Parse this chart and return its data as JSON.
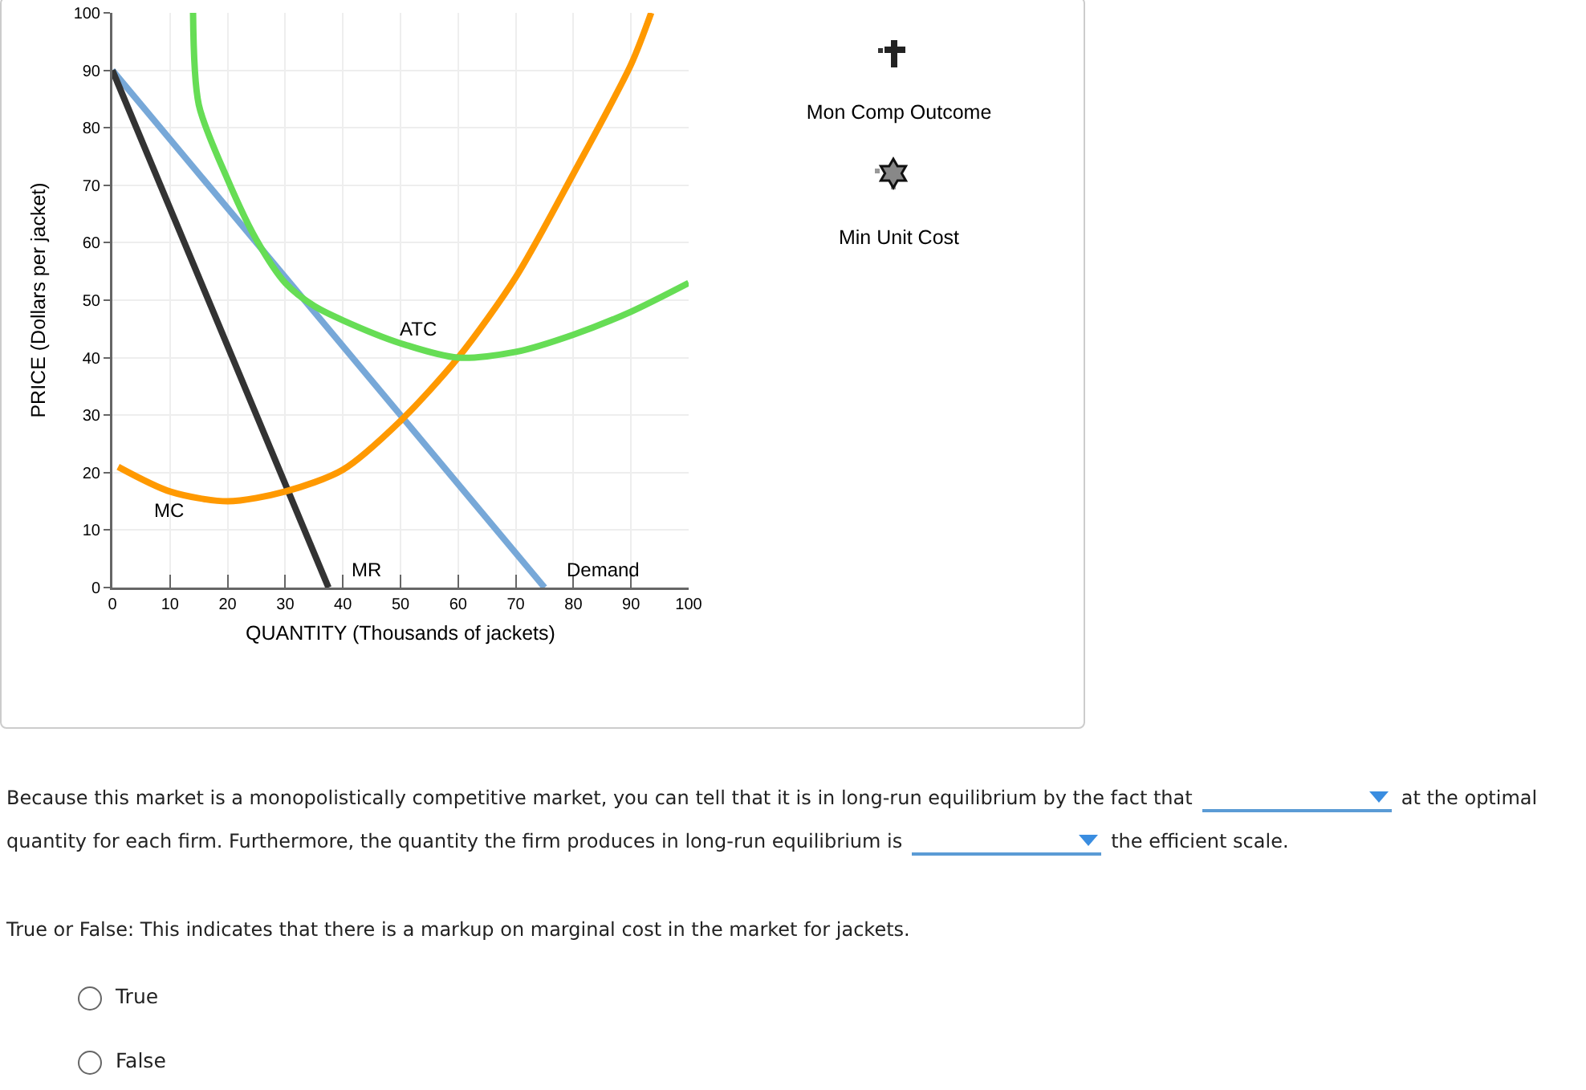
{
  "chart_data": {
    "type": "line",
    "xlabel": "QUANTITY (Thousands of jackets)",
    "ylabel": "PRICE (Dollars per jacket)",
    "xlim": [
      0,
      100
    ],
    "xticks": [
      0,
      10,
      20,
      30,
      40,
      50,
      60,
      70,
      80,
      90,
      100
    ],
    "ylim": [
      0,
      100
    ],
    "yticks": [
      0,
      10,
      20,
      30,
      40,
      50,
      60,
      70,
      80,
      90,
      100
    ],
    "grid": true,
    "marker": "none",
    "line_style": "solid",
    "series": [
      {
        "color": "#77a8d8",
        "x": [
          0,
          75
        ],
        "values": [
          90,
          0
        ]
      },
      {
        "color": "#333333",
        "x": [
          0,
          37.5
        ],
        "values": [
          90,
          0
        ]
      },
      {
        "color": "#ff9900",
        "x": [
          1,
          10,
          20,
          30,
          40,
          50,
          60,
          70,
          80,
          90,
          93.5
        ],
        "values": [
          21,
          16.7,
          15,
          16.7,
          20.5,
          29,
          40,
          54,
          72,
          91,
          100
        ]
      },
      {
        "color": "#66dd55",
        "x": [
          14,
          15,
          20,
          25,
          30,
          35,
          40,
          50,
          60,
          70,
          80,
          90,
          100
        ],
        "values": [
          100,
          84,
          71,
          60.5,
          53,
          49,
          46.5,
          42.5,
          40,
          41,
          44,
          48,
          53
        ]
      }
    ],
    "annotations": [
      {
        "text": "MC",
        "x": 10,
        "y": 16.7
      },
      {
        "text": "ATC",
        "x": 53,
        "y": 42
      },
      {
        "text": "MR",
        "x": 37.5,
        "y": 0
      },
      {
        "text": "Demand",
        "x": 75,
        "y": 0
      },
      "Mon Comp Outcome",
      "Min Unit Cost",
      "Because this market is a monopolistically competitive market, you can tell that it is in long-run equilibrium by the fact that",
      "at the optimal quantity for each firm. Furthermore, the quantity the firm produces in long-run equilibrium is",
      "the efficient scale.",
      "True or False: This indicates that there is a markup on marginal cost in the market for jackets.",
      "True",
      "False"
    ]
  }
}
